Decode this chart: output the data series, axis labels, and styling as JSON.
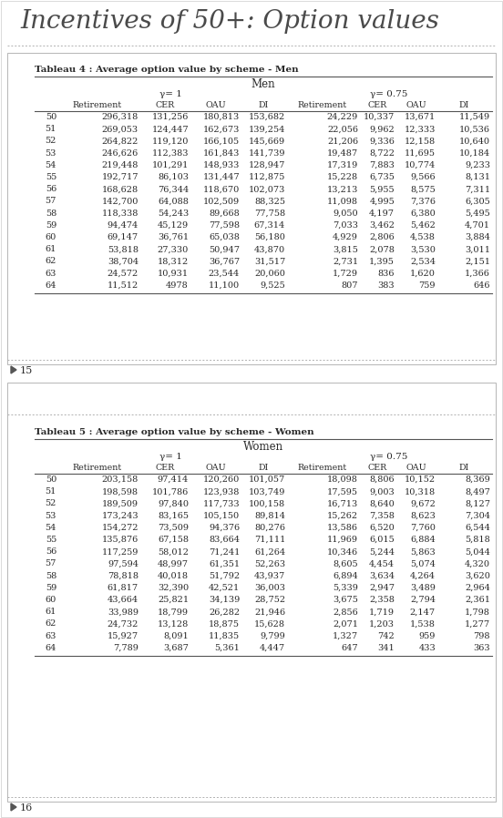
{
  "page_title": "Incentives of 50+: Option values",
  "table4_title": "Tableau 4 : Average option value by scheme - Men",
  "table4_group": "Men",
  "table5_title": "Tableau 5 : Average option value by scheme - Women",
  "table5_group": "Women",
  "gamma1_label": "γ= 1",
  "gamma075_label": "γ= 0.75",
  "col_headers": [
    "Retirement",
    "CER",
    "OAU",
    "DI",
    "Retirement",
    "CER",
    "OAU",
    "DI"
  ],
  "page_num1": "15",
  "page_num2": "16",
  "table4_data": [
    [
      50,
      "296,318",
      "131,256",
      "180,813",
      "153,682",
      "24,229",
      "10,337",
      "13,671",
      "11,549"
    ],
    [
      51,
      "269,053",
      "124,447",
      "162,673",
      "139,254",
      "22,056",
      "9,962",
      "12,333",
      "10,536"
    ],
    [
      52,
      "264,822",
      "119,120",
      "166,105",
      "145,669",
      "21,206",
      "9,336",
      "12,158",
      "10,640"
    ],
    [
      53,
      "246,626",
      "112,383",
      "161,843",
      "141,739",
      "19,487",
      "8,722",
      "11,695",
      "10,184"
    ],
    [
      54,
      "219,448",
      "101,291",
      "148,933",
      "128,947",
      "17,319",
      "7,883",
      "10,774",
      "9,233"
    ],
    [
      55,
      "192,717",
      "86,103",
      "131,447",
      "112,875",
      "15,228",
      "6,735",
      "9,566",
      "8,131"
    ],
    [
      56,
      "168,628",
      "76,344",
      "118,670",
      "102,073",
      "13,213",
      "5,955",
      "8,575",
      "7,311"
    ],
    [
      57,
      "142,700",
      "64,088",
      "102,509",
      "88,325",
      "11,098",
      "4,995",
      "7,376",
      "6,305"
    ],
    [
      58,
      "118,338",
      "54,243",
      "89,668",
      "77,758",
      "9,050",
      "4,197",
      "6,380",
      "5,495"
    ],
    [
      59,
      "94,474",
      "45,129",
      "77,598",
      "67,314",
      "7,033",
      "3,462",
      "5,462",
      "4,701"
    ],
    [
      60,
      "69,147",
      "36,761",
      "65,038",
      "56,180",
      "4,929",
      "2,806",
      "4,538",
      "3,884"
    ],
    [
      61,
      "53,818",
      "27,330",
      "50,947",
      "43,870",
      "3,815",
      "2,078",
      "3,530",
      "3,011"
    ],
    [
      62,
      "38,704",
      "18,312",
      "36,767",
      "31,517",
      "2,731",
      "1,395",
      "2,534",
      "2,151"
    ],
    [
      63,
      "24,572",
      "10,931",
      "23,544",
      "20,060",
      "1,729",
      "836",
      "1,620",
      "1,366"
    ],
    [
      64,
      "11,512",
      "4978",
      "11,100",
      "9,525",
      "807",
      "383",
      "759",
      "646"
    ]
  ],
  "table5_data": [
    [
      50,
      "203,158",
      "97,414",
      "120,260",
      "101,057",
      "18,098",
      "8,806",
      "10,152",
      "8,369"
    ],
    [
      51,
      "198,598",
      "101,786",
      "123,938",
      "103,749",
      "17,595",
      "9,003",
      "10,318",
      "8,497"
    ],
    [
      52,
      "189,509",
      "97,840",
      "117,733",
      "100,158",
      "16,713",
      "8,640",
      "9,672",
      "8,127"
    ],
    [
      53,
      "173,243",
      "83,165",
      "105,150",
      "89,814",
      "15,262",
      "7,358",
      "8,623",
      "7,304"
    ],
    [
      54,
      "154,272",
      "73,509",
      "94,376",
      "80,276",
      "13,586",
      "6,520",
      "7,760",
      "6,544"
    ],
    [
      55,
      "135,876",
      "67,158",
      "83,664",
      "71,111",
      "11,969",
      "6,015",
      "6,884",
      "5,818"
    ],
    [
      56,
      "117,259",
      "58,012",
      "71,241",
      "61,264",
      "10,346",
      "5,244",
      "5,863",
      "5,044"
    ],
    [
      57,
      "97,594",
      "48,997",
      "61,351",
      "52,263",
      "8,605",
      "4,454",
      "5,074",
      "4,320"
    ],
    [
      58,
      "78,818",
      "40,018",
      "51,792",
      "43,937",
      "6,894",
      "3,634",
      "4,264",
      "3,620"
    ],
    [
      59,
      "61,817",
      "32,390",
      "42,521",
      "36,003",
      "5,339",
      "2,947",
      "3,489",
      "2,964"
    ],
    [
      60,
      "43,664",
      "25,821",
      "34,139",
      "28,752",
      "3,675",
      "2,358",
      "2,794",
      "2,361"
    ],
    [
      61,
      "33,989",
      "18,799",
      "26,282",
      "21,946",
      "2,856",
      "1,719",
      "2,147",
      "1,798"
    ],
    [
      62,
      "24,732",
      "13,128",
      "18,875",
      "15,628",
      "2,071",
      "1,203",
      "1,538",
      "1,277"
    ],
    [
      63,
      "15,927",
      "8,091",
      "11,835",
      "9,799",
      "1,327",
      "742",
      "959",
      "798"
    ],
    [
      64,
      "7,789",
      "3,687",
      "5,361",
      "4,447",
      "647",
      "341",
      "433",
      "363"
    ]
  ],
  "page_bg": "#f0f0eb",
  "white": "#ffffff",
  "text_color": "#2a2a2a",
  "title_color": "#4a4a4a",
  "border_dark": "#555555",
  "border_light": "#aaaaaa",
  "dashed_color": "#b0b0b0"
}
